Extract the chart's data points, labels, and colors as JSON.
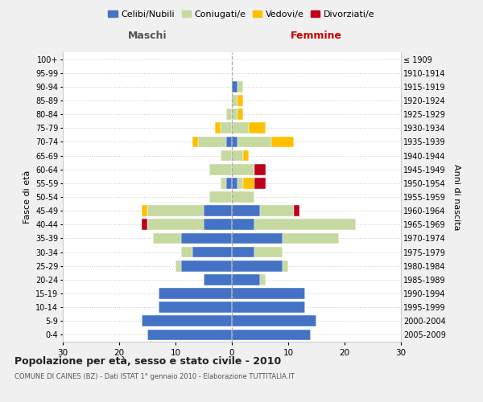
{
  "age_groups": [
    "0-4",
    "5-9",
    "10-14",
    "15-19",
    "20-24",
    "25-29",
    "30-34",
    "35-39",
    "40-44",
    "45-49",
    "50-54",
    "55-59",
    "60-64",
    "65-69",
    "70-74",
    "75-79",
    "80-84",
    "85-89",
    "90-94",
    "95-99",
    "100+"
  ],
  "birth_years": [
    "2005-2009",
    "2000-2004",
    "1995-1999",
    "1990-1994",
    "1985-1989",
    "1980-1984",
    "1975-1979",
    "1970-1974",
    "1965-1969",
    "1960-1964",
    "1955-1959",
    "1950-1954",
    "1945-1949",
    "1940-1944",
    "1935-1939",
    "1930-1934",
    "1925-1929",
    "1920-1924",
    "1915-1919",
    "1910-1914",
    "≤ 1909"
  ],
  "maschi": {
    "celibi": [
      15,
      16,
      13,
      13,
      5,
      9,
      7,
      9,
      5,
      5,
      0,
      1,
      0,
      0,
      1,
      0,
      0,
      0,
      0,
      0,
      0
    ],
    "coniugati": [
      0,
      0,
      0,
      0,
      0,
      1,
      2,
      5,
      10,
      10,
      4,
      1,
      4,
      2,
      5,
      2,
      1,
      0,
      0,
      0,
      0
    ],
    "vedovi": [
      0,
      0,
      0,
      0,
      0,
      0,
      0,
      0,
      0,
      1,
      0,
      0,
      0,
      0,
      1,
      1,
      0,
      0,
      0,
      0,
      0
    ],
    "divorziati": [
      0,
      0,
      0,
      0,
      0,
      0,
      0,
      0,
      1,
      0,
      0,
      0,
      0,
      0,
      0,
      0,
      0,
      0,
      0,
      0,
      0
    ]
  },
  "femmine": {
    "nubili": [
      14,
      15,
      13,
      13,
      5,
      9,
      4,
      9,
      4,
      5,
      0,
      1,
      0,
      0,
      1,
      0,
      0,
      0,
      1,
      0,
      0
    ],
    "coniugate": [
      0,
      0,
      0,
      0,
      1,
      1,
      5,
      10,
      18,
      6,
      4,
      1,
      4,
      2,
      6,
      3,
      1,
      1,
      1,
      0,
      0
    ],
    "vedove": [
      0,
      0,
      0,
      0,
      0,
      0,
      0,
      0,
      0,
      0,
      0,
      2,
      0,
      1,
      4,
      3,
      1,
      1,
      0,
      0,
      0
    ],
    "divorziate": [
      0,
      0,
      0,
      0,
      0,
      0,
      0,
      0,
      0,
      1,
      0,
      2,
      2,
      0,
      0,
      0,
      0,
      0,
      0,
      0,
      0
    ]
  },
  "colors": {
    "celibi": "#4472c4",
    "coniugati": "#c5d9a0",
    "vedovi": "#ffc000",
    "divorziati": "#c0001a"
  },
  "xlim": 30,
  "title": "Popolazione per età, sesso e stato civile - 2010",
  "subtitle": "COMUNE DI CAINES (BZ) - Dati ISTAT 1° gennaio 2010 - Elaborazione TUTTITALIA.IT",
  "ylabel_left": "Fasce di età",
  "ylabel_right": "Anni di nascita",
  "xlabel_maschi": "Maschi",
  "xlabel_femmine": "Femmine",
  "legend_labels": [
    "Celibi/Nubili",
    "Coniugati/e",
    "Vedovi/e",
    "Divorziati/e"
  ],
  "bg_color": "#f0f0f0",
  "plot_bg_color": "#ffffff"
}
